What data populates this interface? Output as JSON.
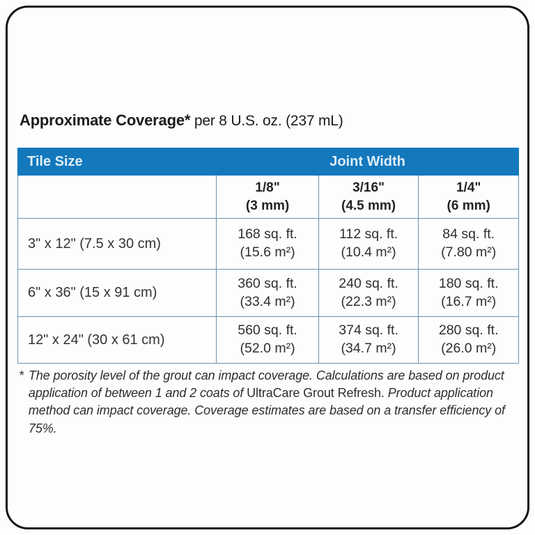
{
  "page": {
    "title_bold": "Approximate Coverage*",
    "title_rest": "per 8 U.S. oz. (237 mL)"
  },
  "table": {
    "header": {
      "tile_size": "Tile Size",
      "joint_width": "Joint Width"
    },
    "joint_columns": [
      {
        "size": "1/8\"",
        "mm": "(3 mm)"
      },
      {
        "size": "3/16\"",
        "mm": "(4.5 mm)"
      },
      {
        "size": "1/4\"",
        "mm": "(6 mm)"
      }
    ],
    "rows": [
      {
        "tile": "3\" x 12\" (7.5 x 30 cm)",
        "cells": [
          {
            "ft": "168 sq. ft.",
            "m2": "(15.6 m²)"
          },
          {
            "ft": "112 sq. ft.",
            "m2": "(10.4 m²)"
          },
          {
            "ft": "84 sq. ft.",
            "m2": "(7.80 m²)"
          }
        ]
      },
      {
        "tile": "6\" x 36\" (15 x 91 cm)",
        "cells": [
          {
            "ft": "360 sq. ft.",
            "m2": "(33.4 m²)"
          },
          {
            "ft": "240 sq. ft.",
            "m2": "(22.3 m²)"
          },
          {
            "ft": "180 sq. ft.",
            "m2": "(16.7 m²)"
          }
        ]
      },
      {
        "tile": "12\" x 24\" (30 x 61 cm)",
        "cells": [
          {
            "ft": "560 sq. ft.",
            "m2": "(52.0 m²)"
          },
          {
            "ft": "374 sq. ft.",
            "m2": "(34.7 m²)"
          },
          {
            "ft": "280 sq. ft.",
            "m2": "(26.0 m²)"
          }
        ]
      }
    ]
  },
  "footnote": {
    "asterisk": "*",
    "part1": "The porosity level of the grout can impact coverage. Calculations are based on product application of between 1 and 2 coats of ",
    "brand": "UltraCare Grout Refresh.",
    "part2": " Product application method can impact coverage. Coverage estimates are based on a transfer efficiency of 75%."
  },
  "colors": {
    "header_blue": "#1478bd",
    "header_text": "#ddeef8",
    "grid_line": "#6b92aa",
    "frame_border": "#141414"
  }
}
